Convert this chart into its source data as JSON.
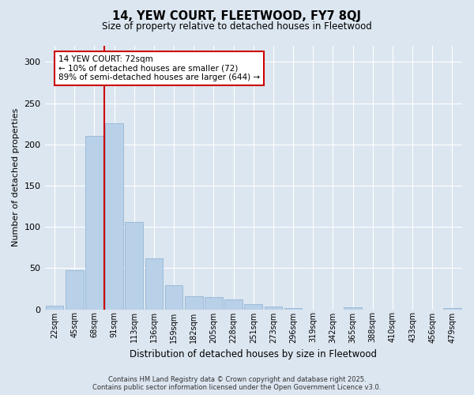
{
  "title": "14, YEW COURT, FLEETWOOD, FY7 8QJ",
  "subtitle": "Size of property relative to detached houses in Fleetwood",
  "xlabel": "Distribution of detached houses by size in Fleetwood",
  "ylabel": "Number of detached properties",
  "bar_color": "#b8d0e8",
  "bar_edge_color": "#8ab0d0",
  "background_color": "#dce6f0",
  "grid_color": "#ffffff",
  "categories": [
    "22sqm",
    "45sqm",
    "68sqm",
    "91sqm",
    "113sqm",
    "136sqm",
    "159sqm",
    "182sqm",
    "205sqm",
    "228sqm",
    "251sqm",
    "273sqm",
    "296sqm",
    "319sqm",
    "342sqm",
    "365sqm",
    "388sqm",
    "410sqm",
    "433sqm",
    "456sqm",
    "479sqm"
  ],
  "values": [
    4,
    47,
    210,
    226,
    106,
    62,
    29,
    16,
    15,
    12,
    6,
    3,
    1,
    0,
    0,
    2,
    0,
    0,
    0,
    0,
    1
  ],
  "ylim": [
    0,
    320
  ],
  "yticks": [
    0,
    50,
    100,
    150,
    200,
    250,
    300
  ],
  "vline_color": "#cc0000",
  "vline_x": 2.5,
  "annotation_text": "14 YEW COURT: 72sqm\n← 10% of detached houses are smaller (72)\n89% of semi-detached houses are larger (644) →",
  "annotation_box_color": "#ffffff",
  "annotation_box_edge_color": "#cc0000",
  "footer_line1": "Contains HM Land Registry data © Crown copyright and database right 2025.",
  "footer_line2": "Contains public sector information licensed under the Open Government Licence v3.0."
}
